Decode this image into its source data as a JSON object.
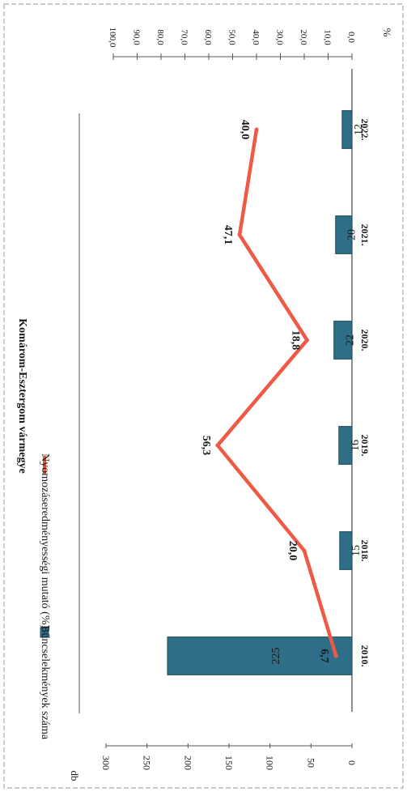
{
  "chart_data": {
    "type": "bar+line",
    "title": "Komárom-Esztergom vármegye",
    "categories": [
      "2010.",
      "2018.",
      "2019.",
      "2020.",
      "2021.",
      "2022."
    ],
    "series": [
      {
        "name": "Bűncselekmények száma",
        "kind": "bar",
        "axis": "left",
        "values": [
          225,
          15,
          16,
          22,
          20,
          12
        ],
        "value_labels": [
          "225",
          "15",
          "16",
          "22",
          "20",
          "12"
        ],
        "color": "#2e6e86"
      },
      {
        "name": "Nyomozáseredményességi mutató (%)",
        "kind": "line",
        "axis": "right",
        "values": [
          6.7,
          20.0,
          56.3,
          18.8,
          47.1,
          40.0
        ],
        "value_labels": [
          "6,7",
          "20,0",
          "56,3",
          "18,8",
          "47,1",
          "40,0"
        ],
        "color": "#ef5a47"
      }
    ],
    "left_axis": {
      "unit": "db",
      "range": [
        0,
        300
      ],
      "ticks": [
        0,
        50,
        100,
        150,
        200,
        250,
        300
      ],
      "tick_labels": [
        "0",
        "50",
        "100",
        "150",
        "200",
        "250",
        "300"
      ]
    },
    "right_axis": {
      "unit": "%",
      "range": [
        0,
        100
      ],
      "ticks": [
        0,
        10,
        20,
        30,
        40,
        50,
        60,
        70,
        80,
        90,
        100
      ],
      "tick_labels": [
        "0,0",
        "10,0",
        "20,0",
        "30,0",
        "40,0",
        "50,0",
        "60,0",
        "70,0",
        "80,0",
        "90,0",
        "100,0"
      ]
    },
    "grid": false,
    "legend_position": "top",
    "orientation": "rotated 90° clockwise"
  }
}
